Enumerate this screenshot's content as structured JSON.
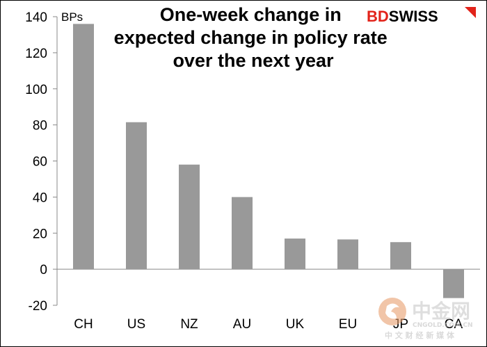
{
  "logo": {
    "brand_text": "BDSWISS",
    "brand_color": "#E2231A"
  },
  "watermark": {
    "text": "中金网",
    "subtext": "CNGOLD.COM.CN",
    "tagline": "中 文 财 经 新 媒 体"
  },
  "chart_data": {
    "type": "bar",
    "title": "One-week change in expected change in policy rate over the next year",
    "title_lines": [
      "One-week change in",
      "expected change in policy rate",
      "over the next year"
    ],
    "unit_label": "BPs",
    "categories": [
      "CH",
      "US",
      "NZ",
      "AU",
      "UK",
      "EU",
      "JP",
      "CA"
    ],
    "values": [
      136,
      81.5,
      58,
      40,
      17,
      16.5,
      15,
      -16
    ],
    "ylim": [
      -20,
      140
    ],
    "yticks": [
      -20,
      0,
      20,
      40,
      60,
      80,
      100,
      120,
      140
    ],
    "bar_color": "#999999",
    "grid": false,
    "legend": "none"
  }
}
